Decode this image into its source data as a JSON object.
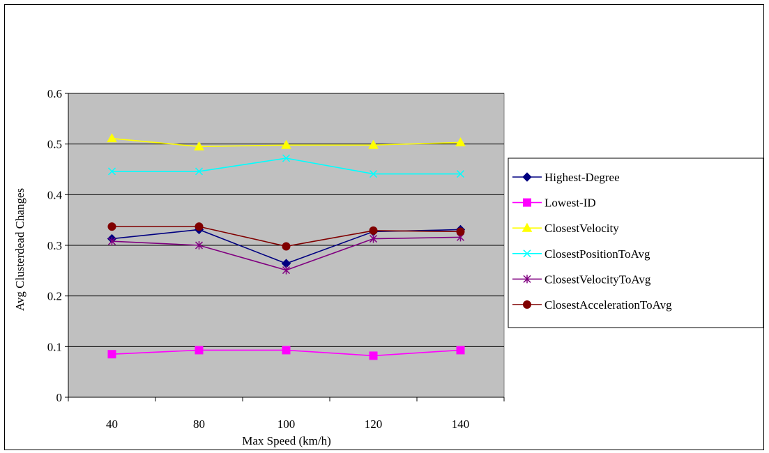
{
  "chart_data": {
    "type": "line",
    "title": "",
    "xlabel": "Max Speed (km/h)",
    "ylabel": "Avg Clusterdead Changes",
    "categories": [
      "40",
      "80",
      "100",
      "120",
      "140"
    ],
    "ylim": [
      0,
      0.6
    ],
    "yticks": [
      "0",
      "0.1",
      "0.2",
      "0.3",
      "0.4",
      "0.5",
      "0.6"
    ],
    "grid": true,
    "legend_position": "right",
    "plot_background": "#C0C0C0",
    "series": [
      {
        "name": "Highest-Degree",
        "color": "#000080",
        "marker": "diamond",
        "values": [
          0.313,
          0.331,
          0.264,
          0.327,
          0.331
        ]
      },
      {
        "name": "Lowest-ID",
        "color": "#FF00FF",
        "marker": "square",
        "values": [
          0.085,
          0.093,
          0.093,
          0.082,
          0.093
        ]
      },
      {
        "name": "ClosestVelocity",
        "color": "#FFFF00",
        "marker": "triangle",
        "values": [
          0.511,
          0.495,
          0.498,
          0.498,
          0.503
        ]
      },
      {
        "name": "ClosestPositionToAvg",
        "color": "#00FFFF",
        "marker": "x",
        "values": [
          0.446,
          0.446,
          0.472,
          0.441,
          0.441
        ]
      },
      {
        "name": "ClosestVelocityToAvg",
        "color": "#800080",
        "marker": "star",
        "values": [
          0.308,
          0.3,
          0.251,
          0.313,
          0.316
        ]
      },
      {
        "name": "ClosestAccelerationToAvg",
        "color": "#800000",
        "marker": "circle",
        "values": [
          0.337,
          0.337,
          0.298,
          0.329,
          0.327
        ]
      }
    ]
  }
}
